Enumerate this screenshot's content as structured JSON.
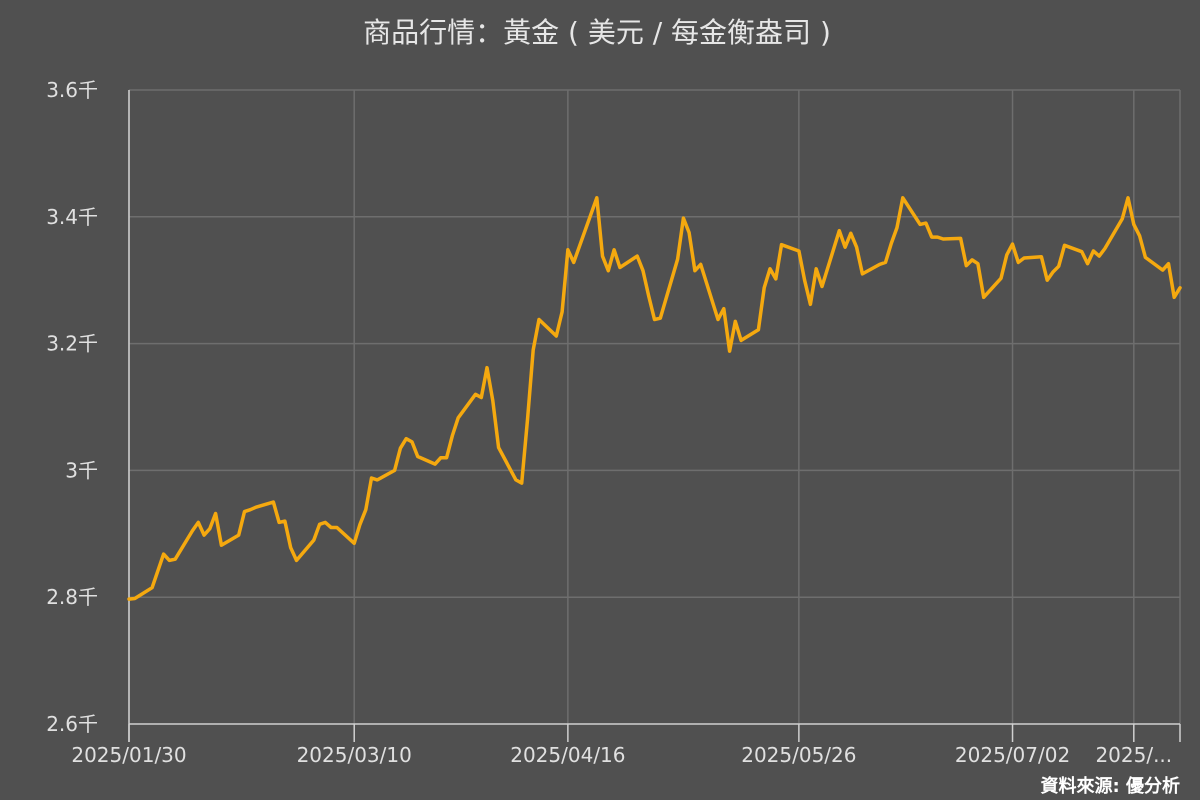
{
  "chart_data": {
    "type": "line",
    "title": "商品行情：黃金 ( 美元 / 每金衡盎司 )",
    "source": "資料來源: 優分析",
    "xlabel": "",
    "ylabel": "",
    "ylim": [
      2600,
      3600
    ],
    "yticks": [
      {
        "value": 2600,
        "label": "2.6千"
      },
      {
        "value": 2800,
        "label": "2.8千"
      },
      {
        "value": 3000,
        "label": "3千"
      },
      {
        "value": 3200,
        "label": "3.2千"
      },
      {
        "value": 3400,
        "label": "3.4千"
      },
      {
        "value": 3600,
        "label": "3.6千"
      }
    ],
    "xlim": [
      "2025-01-30",
      "2025-07-31"
    ],
    "xticks": [
      {
        "date": "2025-01-30",
        "label": "2025/01/30"
      },
      {
        "date": "2025-03-10",
        "label": "2025/03/10"
      },
      {
        "date": "2025-04-16",
        "label": "2025/04/16"
      },
      {
        "date": "2025-05-26",
        "label": "2025/05/26"
      },
      {
        "date": "2025-07-02",
        "label": "2025/07/02"
      },
      {
        "date": "2025-07-23",
        "label": "2025/..."
      }
    ],
    "grid": true,
    "series": [
      {
        "color": "#f5a90f",
        "points": [
          [
            "2025-01-30",
            2797
          ],
          [
            "2025-01-31",
            2798
          ],
          [
            "2025-02-03",
            2815
          ],
          [
            "2025-02-05",
            2868
          ],
          [
            "2025-02-06",
            2858
          ],
          [
            "2025-02-07",
            2860
          ],
          [
            "2025-02-10",
            2905
          ],
          [
            "2025-02-11",
            2918
          ],
          [
            "2025-02-12",
            2898
          ],
          [
            "2025-02-13",
            2908
          ],
          [
            "2025-02-14",
            2932
          ],
          [
            "2025-02-15",
            2882
          ],
          [
            "2025-02-18",
            2898
          ],
          [
            "2025-02-19",
            2935
          ],
          [
            "2025-02-20",
            2938
          ],
          [
            "2025-02-21",
            2942
          ],
          [
            "2025-02-24",
            2950
          ],
          [
            "2025-02-25",
            2918
          ],
          [
            "2025-02-26",
            2920
          ],
          [
            "2025-02-27",
            2878
          ],
          [
            "2025-02-28",
            2858
          ],
          [
            "2025-03-03",
            2890
          ],
          [
            "2025-03-04",
            2915
          ],
          [
            "2025-03-05",
            2918
          ],
          [
            "2025-03-06",
            2910
          ],
          [
            "2025-03-07",
            2910
          ],
          [
            "2025-03-10",
            2885
          ],
          [
            "2025-03-11",
            2915
          ],
          [
            "2025-03-12",
            2938
          ],
          [
            "2025-03-13",
            2988
          ],
          [
            "2025-03-14",
            2985
          ],
          [
            "2025-03-17",
            3000
          ],
          [
            "2025-03-18",
            3035
          ],
          [
            "2025-03-19",
            3050
          ],
          [
            "2025-03-20",
            3045
          ],
          [
            "2025-03-21",
            3022
          ],
          [
            "2025-03-24",
            3010
          ],
          [
            "2025-03-25",
            3020
          ],
          [
            "2025-03-26",
            3020
          ],
          [
            "2025-03-27",
            3055
          ],
          [
            "2025-03-28",
            3083
          ],
          [
            "2025-03-31",
            3120
          ],
          [
            "2025-04-01",
            3115
          ],
          [
            "2025-04-02",
            3162
          ],
          [
            "2025-04-03",
            3110
          ],
          [
            "2025-04-04",
            3036
          ],
          [
            "2025-04-07",
            2985
          ],
          [
            "2025-04-08",
            2980
          ],
          [
            "2025-04-09",
            3080
          ],
          [
            "2025-04-10",
            3190
          ],
          [
            "2025-04-11",
            3238
          ],
          [
            "2025-04-14",
            3212
          ],
          [
            "2025-04-15",
            3250
          ],
          [
            "2025-04-16",
            3348
          ],
          [
            "2025-04-17",
            3328
          ],
          [
            "2025-04-21",
            3430
          ],
          [
            "2025-04-22",
            3338
          ],
          [
            "2025-04-23",
            3315
          ],
          [
            "2025-04-24",
            3348
          ],
          [
            "2025-04-25",
            3320
          ],
          [
            "2025-04-28",
            3338
          ],
          [
            "2025-04-29",
            3315
          ],
          [
            "2025-04-30",
            3275
          ],
          [
            "2025-05-01",
            3238
          ],
          [
            "2025-05-02",
            3240
          ],
          [
            "2025-05-05",
            3333
          ],
          [
            "2025-05-06",
            3398
          ],
          [
            "2025-05-07",
            3375
          ],
          [
            "2025-05-08",
            3315
          ],
          [
            "2025-05-09",
            3325
          ],
          [
            "2025-05-12",
            3238
          ],
          [
            "2025-05-13",
            3255
          ],
          [
            "2025-05-14",
            3188
          ],
          [
            "2025-05-15",
            3235
          ],
          [
            "2025-05-16",
            3205
          ],
          [
            "2025-05-19",
            3222
          ],
          [
            "2025-05-20",
            3288
          ],
          [
            "2025-05-21",
            3318
          ],
          [
            "2025-05-22",
            3302
          ],
          [
            "2025-05-23",
            3356
          ],
          [
            "2025-05-26",
            3346
          ],
          [
            "2025-05-27",
            3300
          ],
          [
            "2025-05-28",
            3262
          ],
          [
            "2025-05-29",
            3318
          ],
          [
            "2025-05-30",
            3290
          ],
          [
            "2025-06-02",
            3378
          ],
          [
            "2025-06-03",
            3352
          ],
          [
            "2025-06-04",
            3374
          ],
          [
            "2025-06-05",
            3352
          ],
          [
            "2025-06-06",
            3310
          ],
          [
            "2025-06-09",
            3325
          ],
          [
            "2025-06-10",
            3328
          ],
          [
            "2025-06-11",
            3358
          ],
          [
            "2025-06-12",
            3383
          ],
          [
            "2025-06-13",
            3430
          ],
          [
            "2025-06-16",
            3388
          ],
          [
            "2025-06-17",
            3390
          ],
          [
            "2025-06-18",
            3368
          ],
          [
            "2025-06-19",
            3368
          ],
          [
            "2025-06-20",
            3365
          ],
          [
            "2025-06-23",
            3366
          ],
          [
            "2025-06-24",
            3323
          ],
          [
            "2025-06-25",
            3332
          ],
          [
            "2025-06-26",
            3326
          ],
          [
            "2025-06-27",
            3273
          ],
          [
            "2025-06-30",
            3303
          ],
          [
            "2025-07-01",
            3340
          ],
          [
            "2025-07-02",
            3357
          ],
          [
            "2025-07-03",
            3328
          ],
          [
            "2025-07-04",
            3335
          ],
          [
            "2025-07-07",
            3337
          ],
          [
            "2025-07-08",
            3300
          ],
          [
            "2025-07-09",
            3313
          ],
          [
            "2025-07-10",
            3322
          ],
          [
            "2025-07-11",
            3355
          ],
          [
            "2025-07-14",
            3345
          ],
          [
            "2025-07-15",
            3326
          ],
          [
            "2025-07-16",
            3346
          ],
          [
            "2025-07-17",
            3338
          ],
          [
            "2025-07-18",
            3350
          ],
          [
            "2025-07-21",
            3397
          ],
          [
            "2025-07-22",
            3430
          ],
          [
            "2025-07-23",
            3388
          ],
          [
            "2025-07-24",
            3370
          ],
          [
            "2025-07-25",
            3336
          ],
          [
            "2025-07-28",
            3316
          ],
          [
            "2025-07-29",
            3326
          ],
          [
            "2025-07-30",
            3273
          ],
          [
            "2025-07-31",
            3288
          ]
        ]
      }
    ]
  }
}
